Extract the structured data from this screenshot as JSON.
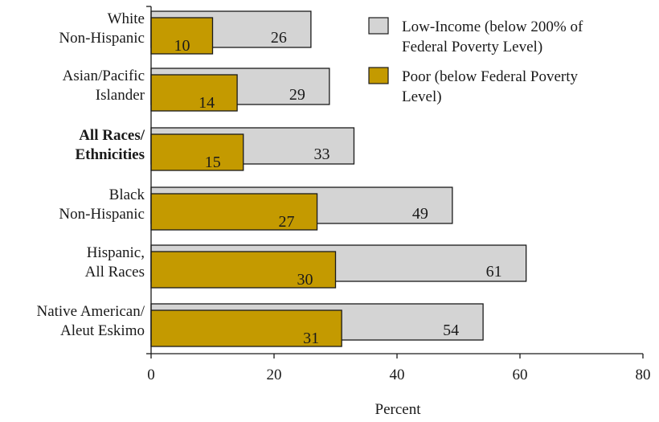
{
  "colors": {
    "low_income": "#d4d4d4",
    "poor": "#c49a00",
    "stroke": "#1a1a1a"
  },
  "chart_data": {
    "type": "bar",
    "orientation": "horizontal",
    "title": "",
    "xlabel": "Percent",
    "ylabel": "",
    "xlim": [
      0,
      80
    ],
    "x_ticks": [
      0,
      20,
      40,
      60,
      80
    ],
    "grid": false,
    "legend_position": "top-right",
    "categories": [
      {
        "lines": [
          "White",
          "Non-Hispanic"
        ],
        "bold": false
      },
      {
        "lines": [
          "Asian/Pacific",
          "Islander"
        ],
        "bold": false
      },
      {
        "lines": [
          "All Races/",
          "Ethnicities"
        ],
        "bold": true
      },
      {
        "lines": [
          "Black",
          "Non-Hispanic"
        ],
        "bold": false
      },
      {
        "lines": [
          "Hispanic,",
          "All Races"
        ],
        "bold": false
      },
      {
        "lines": [
          "Native American/",
          "Aleut Eskimo"
        ],
        "bold": false
      }
    ],
    "series": [
      {
        "key": "low_income",
        "name_lines": [
          "Low-Income (below 200% of",
          "Federal Poverty Level)"
        ],
        "values": [
          26,
          29,
          33,
          49,
          61,
          54
        ]
      },
      {
        "key": "poor",
        "name_lines": [
          "Poor (below Federal Poverty",
          "Level)"
        ],
        "values": [
          10,
          14,
          15,
          27,
          30,
          31
        ]
      }
    ]
  }
}
